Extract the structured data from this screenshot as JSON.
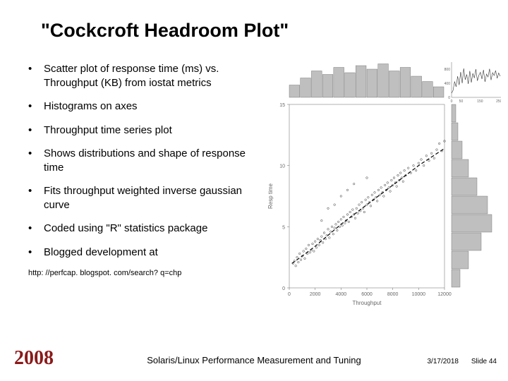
{
  "title": "\"Cockcroft Headroom Plot\"",
  "bullets": [
    "Scatter plot of response time (ms) vs. Throughput (KB) from iostat metrics",
    "Histograms on axes",
    "Throughput time series plot",
    "Shows distributions and shape of response time",
    "Fits throughput weighted inverse gaussian curve",
    "Coded using \"R\" statistics package",
    "Blogged development at"
  ],
  "url": "http: //perfcap. blogspot. com/search? q=chp",
  "year": "2008",
  "footer_title": "Solaris/Linux Performance Measurement and Tuning",
  "footer_date": "3/17/2018",
  "footer_slide": "Slide 44",
  "chart": {
    "type": "composite",
    "colors": {
      "hist_fill": "#bfbfbf",
      "hist_stroke": "#666666",
      "axis": "#666666",
      "point": "#333333",
      "curve": "#000000",
      "text": "#666666"
    },
    "fontsize_axis": 7,
    "fontsize_label": 8,
    "scatter": {
      "xlim": [
        0,
        12000
      ],
      "ylim": [
        0,
        15
      ],
      "xticks": [
        0,
        2000,
        4000,
        6000,
        8000,
        10000,
        12000
      ],
      "xticklabels": [
        "0",
        "2000",
        "4000",
        "6000",
        "8000",
        "10000",
        "12000"
      ],
      "yticks": [
        0,
        5,
        10,
        15
      ],
      "yticklabels": [
        "0",
        "5",
        "10",
        "15"
      ],
      "xlabel": "Throughput",
      "ylabel": "Resp time",
      "points": [
        [
          300,
          2.0
        ],
        [
          400,
          2.2
        ],
        [
          500,
          1.8
        ],
        [
          600,
          2.5
        ],
        [
          700,
          2.1
        ],
        [
          800,
          2.8
        ],
        [
          900,
          2.3
        ],
        [
          1000,
          2.6
        ],
        [
          1100,
          3.0
        ],
        [
          1200,
          2.4
        ],
        [
          1300,
          3.2
        ],
        [
          1400,
          2.8
        ],
        [
          1500,
          3.5
        ],
        [
          1600,
          2.9
        ],
        [
          1700,
          3.1
        ],
        [
          1800,
          3.6
        ],
        [
          1900,
          3.0
        ],
        [
          2000,
          3.8
        ],
        [
          2100,
          3.3
        ],
        [
          2200,
          4.0
        ],
        [
          2300,
          3.5
        ],
        [
          2400,
          3.9
        ],
        [
          2500,
          4.2
        ],
        [
          2600,
          3.7
        ],
        [
          2700,
          4.5
        ],
        [
          2800,
          4.0
        ],
        [
          2900,
          4.3
        ],
        [
          3000,
          4.8
        ],
        [
          3100,
          4.1
        ],
        [
          3200,
          4.6
        ],
        [
          3300,
          5.0
        ],
        [
          3400,
          4.4
        ],
        [
          3500,
          4.9
        ],
        [
          3600,
          5.2
        ],
        [
          3700,
          4.7
        ],
        [
          3800,
          5.4
        ],
        [
          3900,
          5.0
        ],
        [
          4000,
          5.6
        ],
        [
          4100,
          5.1
        ],
        [
          4200,
          5.8
        ],
        [
          4300,
          5.3
        ],
        [
          4400,
          5.5
        ],
        [
          4500,
          6.0
        ],
        [
          4600,
          5.4
        ],
        [
          4700,
          6.2
        ],
        [
          4800,
          5.8
        ],
        [
          4900,
          6.4
        ],
        [
          5000,
          6.0
        ],
        [
          5100,
          5.7
        ],
        [
          5200,
          6.5
        ],
        [
          5300,
          6.1
        ],
        [
          5400,
          6.8
        ],
        [
          5500,
          6.3
        ],
        [
          5600,
          7.0
        ],
        [
          5700,
          6.5
        ],
        [
          5800,
          6.2
        ],
        [
          5900,
          7.2
        ],
        [
          6000,
          6.8
        ],
        [
          6100,
          7.4
        ],
        [
          6200,
          7.0
        ],
        [
          6300,
          6.7
        ],
        [
          6400,
          7.6
        ],
        [
          6500,
          7.2
        ],
        [
          6600,
          7.8
        ],
        [
          6700,
          7.4
        ],
        [
          6800,
          7.1
        ],
        [
          6900,
          8.0
        ],
        [
          7000,
          7.6
        ],
        [
          7100,
          8.2
        ],
        [
          7200,
          7.8
        ],
        [
          7300,
          7.5
        ],
        [
          7400,
          8.4
        ],
        [
          7500,
          8.0
        ],
        [
          7600,
          8.6
        ],
        [
          7700,
          8.2
        ],
        [
          7800,
          7.9
        ],
        [
          7900,
          8.8
        ],
        [
          8000,
          8.4
        ],
        [
          8100,
          9.0
        ],
        [
          8200,
          8.6
        ],
        [
          8300,
          8.3
        ],
        [
          8400,
          9.2
        ],
        [
          8500,
          8.8
        ],
        [
          8600,
          9.4
        ],
        [
          8700,
          9.0
        ],
        [
          8800,
          8.7
        ],
        [
          8900,
          9.6
        ],
        [
          9000,
          9.2
        ],
        [
          9200,
          9.8
        ],
        [
          9400,
          9.4
        ],
        [
          9600,
          10.0
        ],
        [
          9800,
          9.6
        ],
        [
          10000,
          10.2
        ],
        [
          10200,
          10.5
        ],
        [
          10400,
          10.0
        ],
        [
          10600,
          10.8
        ],
        [
          10800,
          10.4
        ],
        [
          11000,
          11.0
        ],
        [
          11200,
          10.6
        ],
        [
          11400,
          11.3
        ],
        [
          11600,
          11.8
        ],
        [
          11800,
          11.2
        ],
        [
          12000,
          12.0
        ],
        [
          3000,
          6.5
        ],
        [
          4000,
          7.5
        ],
        [
          5000,
          8.5
        ],
        [
          6000,
          9.0
        ],
        [
          2500,
          5.5
        ],
        [
          3500,
          6.8
        ],
        [
          4500,
          8.0
        ]
      ],
      "curve": [
        [
          200,
          2.0
        ],
        [
          1000,
          2.6
        ],
        [
          2000,
          3.4
        ],
        [
          3000,
          4.3
        ],
        [
          4000,
          5.2
        ],
        [
          5000,
          6.0
        ],
        [
          6000,
          6.8
        ],
        [
          7000,
          7.6
        ],
        [
          8000,
          8.4
        ],
        [
          9000,
          9.2
        ],
        [
          10000,
          10.0
        ],
        [
          11000,
          10.7
        ],
        [
          12000,
          11.4
        ]
      ]
    },
    "hist_x": {
      "bins": 14,
      "heights": [
        0.35,
        0.55,
        0.75,
        0.65,
        0.85,
        0.7,
        0.9,
        0.8,
        0.95,
        0.75,
        0.85,
        0.6,
        0.45,
        0.3
      ]
    },
    "hist_y": {
      "bins": 10,
      "heights": [
        0.2,
        0.4,
        0.7,
        0.95,
        0.85,
        0.6,
        0.4,
        0.25,
        0.15,
        0.1
      ]
    },
    "timeseries": {
      "xlim": [
        0,
        260
      ],
      "ylim": [
        0,
        1000
      ],
      "xticks": [
        0,
        50,
        150,
        250
      ],
      "yticks": [
        0,
        400,
        800
      ],
      "yticklabels": [
        "0",
        "400",
        "800"
      ],
      "points": [
        [
          0,
          120
        ],
        [
          8,
          200
        ],
        [
          16,
          450
        ],
        [
          24,
          300
        ],
        [
          32,
          600
        ],
        [
          40,
          350
        ],
        [
          48,
          720
        ],
        [
          56,
          400
        ],
        [
          64,
          820
        ],
        [
          72,
          500
        ],
        [
          80,
          650
        ],
        [
          88,
          380
        ],
        [
          96,
          750
        ],
        [
          104,
          420
        ],
        [
          112,
          680
        ],
        [
          120,
          550
        ],
        [
          128,
          800
        ],
        [
          136,
          470
        ],
        [
          144,
          630
        ],
        [
          152,
          710
        ],
        [
          160,
          520
        ],
        [
          168,
          780
        ],
        [
          176,
          440
        ],
        [
          184,
          660
        ],
        [
          192,
          580
        ],
        [
          200,
          810
        ],
        [
          208,
          490
        ],
        [
          216,
          700
        ],
        [
          224,
          620
        ],
        [
          232,
          760
        ],
        [
          240,
          540
        ],
        [
          248,
          690
        ],
        [
          256,
          600
        ]
      ]
    }
  }
}
